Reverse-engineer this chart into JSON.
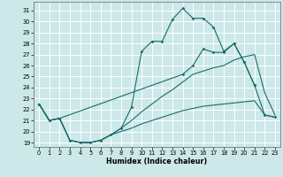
{
  "xlabel": "Humidex (Indice chaleur)",
  "bg_color": "#cce8e8",
  "grid_color": "#ffffff",
  "line_color": "#1a6b6b",
  "xlim": [
    -0.5,
    23.5
  ],
  "ylim": [
    18.6,
    31.8
  ],
  "yticks": [
    19,
    20,
    21,
    22,
    23,
    24,
    25,
    26,
    27,
    28,
    29,
    30,
    31
  ],
  "xticks": [
    0,
    1,
    2,
    3,
    4,
    5,
    6,
    7,
    8,
    9,
    10,
    11,
    12,
    13,
    14,
    15,
    16,
    17,
    18,
    19,
    20,
    21,
    22,
    23
  ],
  "line1_x": [
    0,
    1,
    2,
    3,
    4,
    5,
    6,
    7,
    8,
    9,
    10,
    11,
    12,
    13,
    14,
    15,
    16,
    17,
    18,
    19,
    20,
    21
  ],
  "line1_y": [
    22.5,
    21.0,
    21.2,
    19.2,
    19.0,
    19.0,
    19.2,
    19.7,
    20.3,
    22.2,
    27.3,
    28.2,
    28.2,
    30.2,
    31.2,
    30.3,
    30.3,
    29.5,
    27.3,
    28.0,
    26.3,
    24.2
  ],
  "line2_x": [
    0,
    1,
    2,
    14,
    15,
    16,
    17,
    18,
    19,
    20,
    21,
    22,
    23
  ],
  "line2_y": [
    22.5,
    21.0,
    21.2,
    25.2,
    26.0,
    27.5,
    27.2,
    27.2,
    28.0,
    26.3,
    24.2,
    21.5,
    21.3
  ],
  "line3_x": [
    0,
    1,
    2,
    3,
    4,
    5,
    6,
    7,
    8,
    9,
    10,
    11,
    12,
    13,
    14,
    15,
    16,
    17,
    18,
    19,
    20,
    21,
    22,
    23
  ],
  "line3_y": [
    22.5,
    21.0,
    21.2,
    19.2,
    19.0,
    19.0,
    19.2,
    19.7,
    20.3,
    21.0,
    21.8,
    22.5,
    23.2,
    23.8,
    24.5,
    25.2,
    25.5,
    25.8,
    26.0,
    26.5,
    26.8,
    27.0,
    23.5,
    21.5
  ],
  "line4_x": [
    0,
    1,
    2,
    3,
    4,
    5,
    6,
    7,
    8,
    9,
    10,
    11,
    12,
    13,
    14,
    15,
    16,
    17,
    18,
    19,
    20,
    21,
    22,
    23
  ],
  "line4_y": [
    22.5,
    21.0,
    21.2,
    19.2,
    19.0,
    19.0,
    19.2,
    19.7,
    20.0,
    20.3,
    20.7,
    21.0,
    21.3,
    21.6,
    21.9,
    22.1,
    22.3,
    22.4,
    22.5,
    22.6,
    22.7,
    22.8,
    21.5,
    21.3
  ]
}
